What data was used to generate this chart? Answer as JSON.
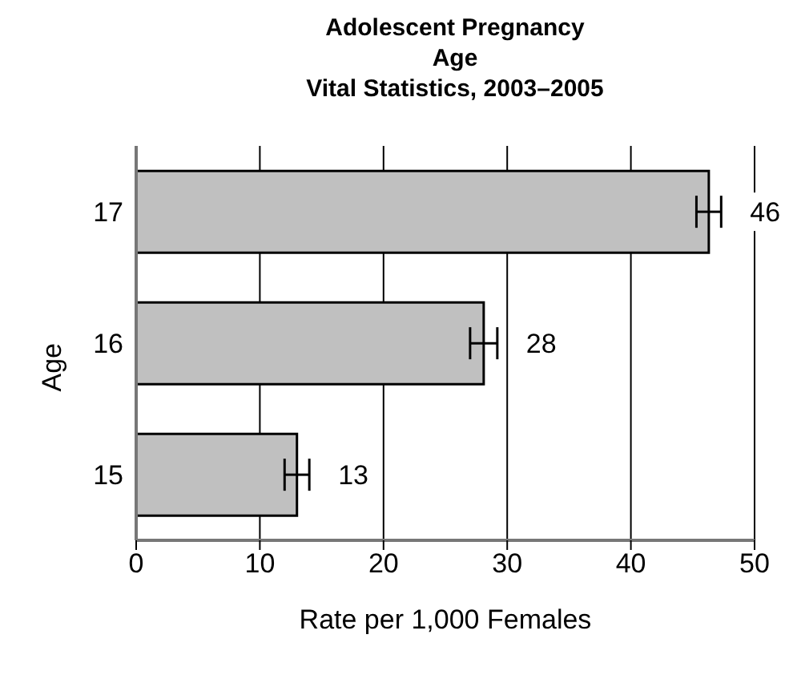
{
  "chart_data": {
    "type": "bar",
    "orientation": "horizontal",
    "title": "Adolescent Pregnancy\nAge\nVital Statistics, 2003–2005",
    "xlabel": "Rate per 1,000 Females",
    "ylabel": "Age",
    "categories": [
      "17",
      "16",
      "15"
    ],
    "values": [
      46.3,
      28.1,
      13.0
    ],
    "value_labels": [
      "46",
      "28",
      "13"
    ],
    "errors": [
      1.0,
      1.1,
      1.0
    ],
    "color": "#c0c0c0",
    "xlim": [
      0,
      50
    ],
    "xticks": [
      0,
      10,
      20,
      30,
      40,
      50
    ],
    "grid": "x"
  }
}
